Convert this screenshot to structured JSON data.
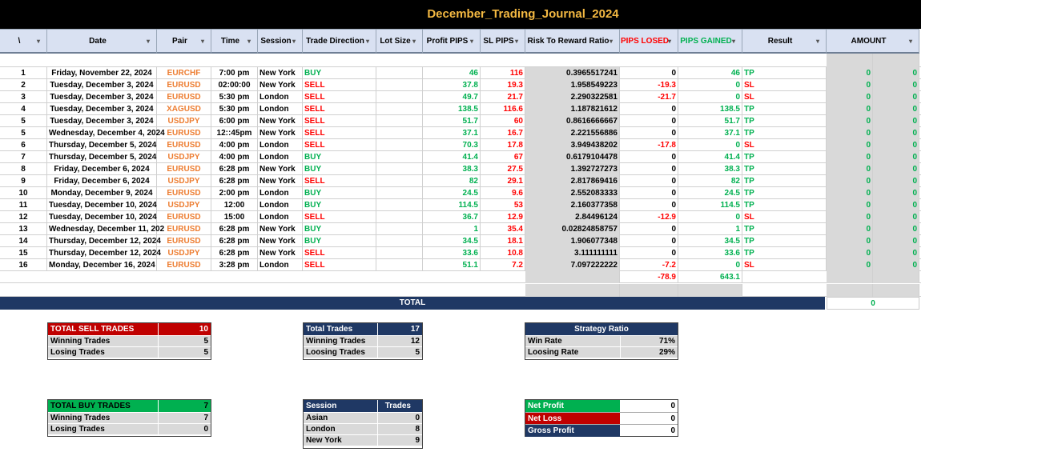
{
  "title": "December_Trading_Journal_2024",
  "headers": [
    "\\",
    "Date",
    "Pair",
    "Time",
    "Session",
    "Trade Direction",
    "Lot Size",
    "Profit PIPS",
    "SL PIPS",
    "Risk To Reward Ratio",
    "PIPS LOSED",
    "PIPS GAINED",
    "Result",
    "AMOUNT"
  ],
  "trades": [
    [
      "1",
      "Friday, November 22, 2024",
      "EURCHF",
      "7:00 pm",
      "New York",
      "BUY",
      "46",
      "116",
      "0.3965517241",
      "0",
      "46",
      "TP",
      "0",
      "0"
    ],
    [
      "2",
      "Tuesday, December 3, 2024",
      "EURUSD",
      "02:00:00",
      "New York",
      "SELL",
      "37.8",
      "19.3",
      "1.958549223",
      "-19.3",
      "0",
      "SL",
      "0",
      "0"
    ],
    [
      "3",
      "Tuesday, December 3, 2024",
      "EURUSD",
      "5:30 pm",
      "London",
      "SELL",
      "49.7",
      "21.7",
      "2.290322581",
      "-21.7",
      "0",
      "SL",
      "0",
      "0"
    ],
    [
      "4",
      "Tuesday, December 3, 2024",
      "XAGUSD",
      "5:30 pm",
      "London",
      "SELL",
      "138.5",
      "116.6",
      "1.187821612",
      "0",
      "138.5",
      "TP",
      "0",
      "0"
    ],
    [
      "5",
      "Tuesday, December 3, 2024",
      "USDJPY",
      "6:00 pm",
      "New York",
      "SELL",
      "51.7",
      "60",
      "0.8616666667",
      "0",
      "51.7",
      "TP",
      "0",
      "0"
    ],
    [
      "5",
      "Wednesday, December 4, 2024",
      "EURUSD",
      "12::45pm",
      "New York",
      "SELL",
      "37.1",
      "16.7",
      "2.221556886",
      "0",
      "37.1",
      "TP",
      "0",
      "0"
    ],
    [
      "6",
      "Thursday, December 5, 2024",
      "EURUSD",
      "4:00 pm",
      "London",
      "SELL",
      "70.3",
      "17.8",
      "3.949438202",
      "-17.8",
      "0",
      "SL",
      "0",
      "0"
    ],
    [
      "7",
      "Thursday, December 5, 2024",
      "USDJPY",
      "4:00 pm",
      "London",
      "BUY",
      "41.4",
      "67",
      "0.6179104478",
      "0",
      "41.4",
      "TP",
      "0",
      "0"
    ],
    [
      "8",
      "Friday, December 6, 2024",
      "EURUSD",
      "6:28 pm",
      "New York",
      "BUY",
      "38.3",
      "27.5",
      "1.392727273",
      "0",
      "38.3",
      "TP",
      "0",
      "0"
    ],
    [
      "9",
      "Friday, December 6, 2024",
      "USDJPY",
      "6:28 pm",
      "New York",
      "SELL",
      "82",
      "29.1",
      "2.817869416",
      "0",
      "82",
      "TP",
      "0",
      "0"
    ],
    [
      "10",
      "Monday, December 9, 2024",
      "EURUSD",
      "2:00 pm",
      "London",
      "BUY",
      "24.5",
      "9.6",
      "2.552083333",
      "0",
      "24.5",
      "TP",
      "0",
      "0"
    ],
    [
      "11",
      "Tuesday, December 10, 2024",
      "USDJPY",
      "12:00",
      "London",
      "BUY",
      "114.5",
      "53",
      "2.160377358",
      "0",
      "114.5",
      "TP",
      "0",
      "0"
    ],
    [
      "12",
      "Tuesday, December 10, 2024",
      "EURUSD",
      "15:00",
      "London",
      "SELL",
      "36.7",
      "12.9",
      "2.84496124",
      "-12.9",
      "0",
      "SL",
      "0",
      "0"
    ],
    [
      "13",
      "Wednesday, December 11, 202",
      "EURUSD",
      "6:28 pm",
      "New York",
      "BUY",
      "1",
      "35.4",
      "0.02824858757",
      "0",
      "1",
      "TP",
      "0",
      "0"
    ],
    [
      "14",
      "Thursday, December 12, 2024",
      "EURUSD",
      "6:28 pm",
      "New York",
      "BUY",
      "34.5",
      "18.1",
      "1.906077348",
      "0",
      "34.5",
      "TP",
      "0",
      "0"
    ],
    [
      "15",
      "Thursday, December 12, 2024",
      "USDJPY",
      "6:28 pm",
      "New York",
      "SELL",
      "33.6",
      "10.8",
      "3.111111111",
      "0",
      "33.6",
      "TP",
      "0",
      "0"
    ],
    [
      "16",
      "Monday, December 16, 2024",
      "EURUSD",
      "3:28 pm",
      "London",
      "SELL",
      "51.1",
      "7.2",
      "7.097222222",
      "-7.2",
      "0",
      "SL",
      "0",
      "0"
    ]
  ],
  "sums": {
    "pips_losed": "-78.9",
    "pips_gained": "643.1"
  },
  "total": {
    "label": "TOTAL",
    "amount": "0"
  },
  "sell": {
    "title": "TOTAL SELL TRADES",
    "total": "10",
    "win_label": "Winning Trades",
    "win": "5",
    "lose_label": "Losing Trades",
    "lose": "5"
  },
  "buy": {
    "title": "TOTAL BUY TRADES",
    "total": "7",
    "win_label": "Winning Trades",
    "win": "7",
    "lose_label": "Losing Trades",
    "lose": "0"
  },
  "overall": {
    "title": "Total Trades",
    "total": "17",
    "win_label": "Winning Trades",
    "win": "12",
    "lose_label": "Loosing Trades",
    "lose": "5"
  },
  "sessions": {
    "h1": "Session",
    "h2": "Trades",
    "rows": [
      [
        "Asian",
        "0"
      ],
      [
        "London",
        "8"
      ],
      [
        "New York",
        "9"
      ]
    ]
  },
  "strategy": {
    "title": "Strategy  Ratio",
    "win_label": "Win Rate",
    "win": "71%",
    "lose_label": "Loosing Rate",
    "lose": "29%"
  },
  "profit": {
    "net_profit_label": "Net Profit",
    "net_profit": "0",
    "net_loss_label": "Net Loss",
    "net_loss": "0",
    "gross_label": "Gross Profit",
    "gross": "0"
  },
  "colors": {
    "title_bg": "#000000",
    "title_fg": "#f4b942",
    "header_bg": "#d9e1f2",
    "navy": "#1f3864",
    "red": "#c00000",
    "green": "#00b050"
  }
}
